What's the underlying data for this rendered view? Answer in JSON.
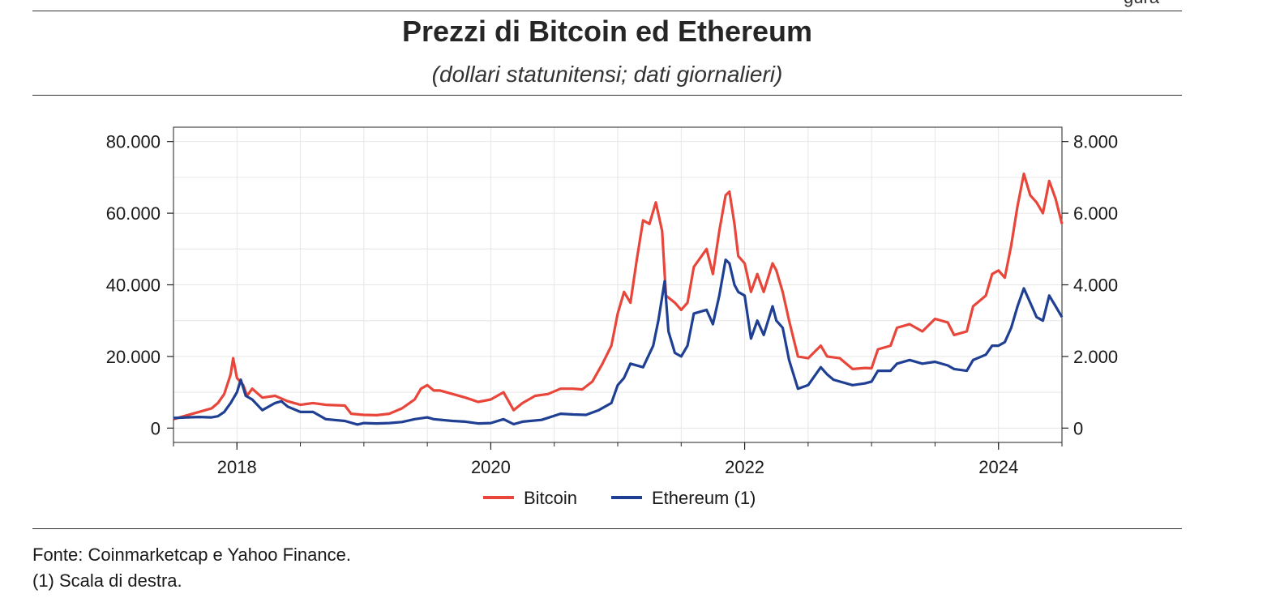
{
  "header": {
    "corner_text": "gura",
    "title": "Prezzi di Bitcoin ed Ethereum",
    "subtitle": "(dollari statunitensi; dati giornalieri)"
  },
  "footer": {
    "source": "Fonte: Coinmarketcap e Yahoo Finance.",
    "note": "(1) Scala di destra."
  },
  "chart_data": {
    "type": "line",
    "title": "Prezzi di Bitcoin ed Ethereum",
    "subtitle": "(dollari statunitensi; dati giornalieri)",
    "x_ticks": [
      "2018",
      "2020",
      "2022",
      "2024"
    ],
    "x_range": [
      2017.5,
      2024.5
    ],
    "y_left": {
      "range": [
        -4000,
        84000
      ],
      "ticks": [
        0,
        20000,
        40000,
        60000,
        80000
      ],
      "tick_labels": [
        "0",
        "20.000",
        "40.000",
        "60.000",
        "80.000"
      ]
    },
    "y_right": {
      "range": [
        -400,
        8400
      ],
      "ticks": [
        0,
        2000,
        4000,
        6000,
        8000
      ],
      "tick_labels": [
        "0",
        "2.000",
        "4.000",
        "6.000",
        "8.000"
      ]
    },
    "grid": true,
    "legend_position": "bottom-center",
    "series": [
      {
        "name": "Bitcoin",
        "axis": "left",
        "color": "#e8463a",
        "points": [
          [
            2017.5,
            2500
          ],
          [
            2017.6,
            3500
          ],
          [
            2017.7,
            4500
          ],
          [
            2017.8,
            5500
          ],
          [
            2017.85,
            7000
          ],
          [
            2017.9,
            9500
          ],
          [
            2017.95,
            15000
          ],
          [
            2017.97,
            19500
          ],
          [
            2018.0,
            14000
          ],
          [
            2018.05,
            12000
          ],
          [
            2018.08,
            9000
          ],
          [
            2018.12,
            11000
          ],
          [
            2018.2,
            8500
          ],
          [
            2018.3,
            9000
          ],
          [
            2018.4,
            7500
          ],
          [
            2018.5,
            6500
          ],
          [
            2018.6,
            7000
          ],
          [
            2018.7,
            6500
          ],
          [
            2018.85,
            6300
          ],
          [
            2018.9,
            4000
          ],
          [
            2019.0,
            3700
          ],
          [
            2019.1,
            3600
          ],
          [
            2019.2,
            4000
          ],
          [
            2019.3,
            5500
          ],
          [
            2019.4,
            8000
          ],
          [
            2019.45,
            11000
          ],
          [
            2019.5,
            12000
          ],
          [
            2019.55,
            10500
          ],
          [
            2019.6,
            10500
          ],
          [
            2019.7,
            9500
          ],
          [
            2019.8,
            8500
          ],
          [
            2019.9,
            7300
          ],
          [
            2020.0,
            8000
          ],
          [
            2020.1,
            10000
          ],
          [
            2020.18,
            5000
          ],
          [
            2020.25,
            7000
          ],
          [
            2020.35,
            9000
          ],
          [
            2020.45,
            9500
          ],
          [
            2020.55,
            11000
          ],
          [
            2020.65,
            11000
          ],
          [
            2020.72,
            10800
          ],
          [
            2020.8,
            13000
          ],
          [
            2020.88,
            18000
          ],
          [
            2020.95,
            23000
          ],
          [
            2021.0,
            32000
          ],
          [
            2021.05,
            38000
          ],
          [
            2021.1,
            35000
          ],
          [
            2021.15,
            47000
          ],
          [
            2021.2,
            58000
          ],
          [
            2021.25,
            57000
          ],
          [
            2021.3,
            63000
          ],
          [
            2021.35,
            55000
          ],
          [
            2021.38,
            37000
          ],
          [
            2021.45,
            35000
          ],
          [
            2021.5,
            33000
          ],
          [
            2021.55,
            35000
          ],
          [
            2021.6,
            45000
          ],
          [
            2021.7,
            50000
          ],
          [
            2021.75,
            43000
          ],
          [
            2021.8,
            55000
          ],
          [
            2021.85,
            65000
          ],
          [
            2021.88,
            66000
          ],
          [
            2021.92,
            57000
          ],
          [
            2021.95,
            48000
          ],
          [
            2022.0,
            46000
          ],
          [
            2022.05,
            38000
          ],
          [
            2022.1,
            43000
          ],
          [
            2022.15,
            38000
          ],
          [
            2022.22,
            46000
          ],
          [
            2022.25,
            44000
          ],
          [
            2022.3,
            38000
          ],
          [
            2022.35,
            30000
          ],
          [
            2022.42,
            20000
          ],
          [
            2022.5,
            19500
          ],
          [
            2022.6,
            23000
          ],
          [
            2022.65,
            20000
          ],
          [
            2022.75,
            19500
          ],
          [
            2022.85,
            16500
          ],
          [
            2022.95,
            16800
          ],
          [
            2023.0,
            16700
          ],
          [
            2023.05,
            22000
          ],
          [
            2023.15,
            23000
          ],
          [
            2023.2,
            28000
          ],
          [
            2023.3,
            29000
          ],
          [
            2023.4,
            27000
          ],
          [
            2023.5,
            30500
          ],
          [
            2023.6,
            29500
          ],
          [
            2023.65,
            26000
          ],
          [
            2023.75,
            27000
          ],
          [
            2023.8,
            34000
          ],
          [
            2023.9,
            37000
          ],
          [
            2023.95,
            43000
          ],
          [
            2024.0,
            44000
          ],
          [
            2024.05,
            42000
          ],
          [
            2024.1,
            51000
          ],
          [
            2024.15,
            62000
          ],
          [
            2024.2,
            71000
          ],
          [
            2024.25,
            65000
          ],
          [
            2024.3,
            63000
          ],
          [
            2024.35,
            60000
          ],
          [
            2024.4,
            69000
          ],
          [
            2024.45,
            64000
          ],
          [
            2024.5,
            57000
          ]
        ]
      },
      {
        "name": "Ethereum (1)",
        "axis": "right",
        "color": "#1f3f93",
        "points": [
          [
            2017.5,
            280
          ],
          [
            2017.6,
            300
          ],
          [
            2017.7,
            310
          ],
          [
            2017.8,
            300
          ],
          [
            2017.85,
            330
          ],
          [
            2017.9,
            450
          ],
          [
            2017.95,
            700
          ],
          [
            2018.0,
            1000
          ],
          [
            2018.03,
            1350
          ],
          [
            2018.07,
            900
          ],
          [
            2018.12,
            800
          ],
          [
            2018.2,
            500
          ],
          [
            2018.3,
            700
          ],
          [
            2018.35,
            750
          ],
          [
            2018.4,
            600
          ],
          [
            2018.5,
            450
          ],
          [
            2018.6,
            450
          ],
          [
            2018.7,
            250
          ],
          [
            2018.85,
            200
          ],
          [
            2018.95,
            100
          ],
          [
            2019.0,
            140
          ],
          [
            2019.1,
            130
          ],
          [
            2019.2,
            140
          ],
          [
            2019.3,
            170
          ],
          [
            2019.4,
            250
          ],
          [
            2019.5,
            300
          ],
          [
            2019.55,
            250
          ],
          [
            2019.7,
            200
          ],
          [
            2019.8,
            180
          ],
          [
            2019.9,
            130
          ],
          [
            2020.0,
            140
          ],
          [
            2020.1,
            250
          ],
          [
            2020.18,
            110
          ],
          [
            2020.25,
            180
          ],
          [
            2020.4,
            230
          ],
          [
            2020.55,
            400
          ],
          [
            2020.65,
            380
          ],
          [
            2020.75,
            370
          ],
          [
            2020.85,
            500
          ],
          [
            2020.95,
            700
          ],
          [
            2021.0,
            1200
          ],
          [
            2021.05,
            1400
          ],
          [
            2021.1,
            1800
          ],
          [
            2021.2,
            1700
          ],
          [
            2021.28,
            2300
          ],
          [
            2021.32,
            3000
          ],
          [
            2021.37,
            4100
          ],
          [
            2021.4,
            2700
          ],
          [
            2021.45,
            2100
          ],
          [
            2021.5,
            2000
          ],
          [
            2021.55,
            2300
          ],
          [
            2021.6,
            3200
          ],
          [
            2021.7,
            3300
          ],
          [
            2021.75,
            2900
          ],
          [
            2021.8,
            3700
          ],
          [
            2021.85,
            4700
          ],
          [
            2021.88,
            4600
          ],
          [
            2021.92,
            4000
          ],
          [
            2021.95,
            3800
          ],
          [
            2022.0,
            3700
          ],
          [
            2022.05,
            2500
          ],
          [
            2022.1,
            3000
          ],
          [
            2022.15,
            2600
          ],
          [
            2022.22,
            3400
          ],
          [
            2022.25,
            3000
          ],
          [
            2022.3,
            2800
          ],
          [
            2022.35,
            1900
          ],
          [
            2022.42,
            1100
          ],
          [
            2022.5,
            1200
          ],
          [
            2022.6,
            1700
          ],
          [
            2022.65,
            1500
          ],
          [
            2022.7,
            1350
          ],
          [
            2022.75,
            1300
          ],
          [
            2022.85,
            1200
          ],
          [
            2022.95,
            1250
          ],
          [
            2023.0,
            1300
          ],
          [
            2023.05,
            1600
          ],
          [
            2023.15,
            1600
          ],
          [
            2023.2,
            1800
          ],
          [
            2023.3,
            1900
          ],
          [
            2023.4,
            1800
          ],
          [
            2023.5,
            1850
          ],
          [
            2023.6,
            1750
          ],
          [
            2023.65,
            1650
          ],
          [
            2023.75,
            1600
          ],
          [
            2023.8,
            1900
          ],
          [
            2023.9,
            2050
          ],
          [
            2023.95,
            2300
          ],
          [
            2024.0,
            2300
          ],
          [
            2024.05,
            2400
          ],
          [
            2024.1,
            2800
          ],
          [
            2024.15,
            3400
          ],
          [
            2024.2,
            3900
          ],
          [
            2024.25,
            3500
          ],
          [
            2024.3,
            3100
          ],
          [
            2024.35,
            3000
          ],
          [
            2024.4,
            3700
          ],
          [
            2024.45,
            3400
          ],
          [
            2024.5,
            3100
          ]
        ]
      }
    ]
  }
}
